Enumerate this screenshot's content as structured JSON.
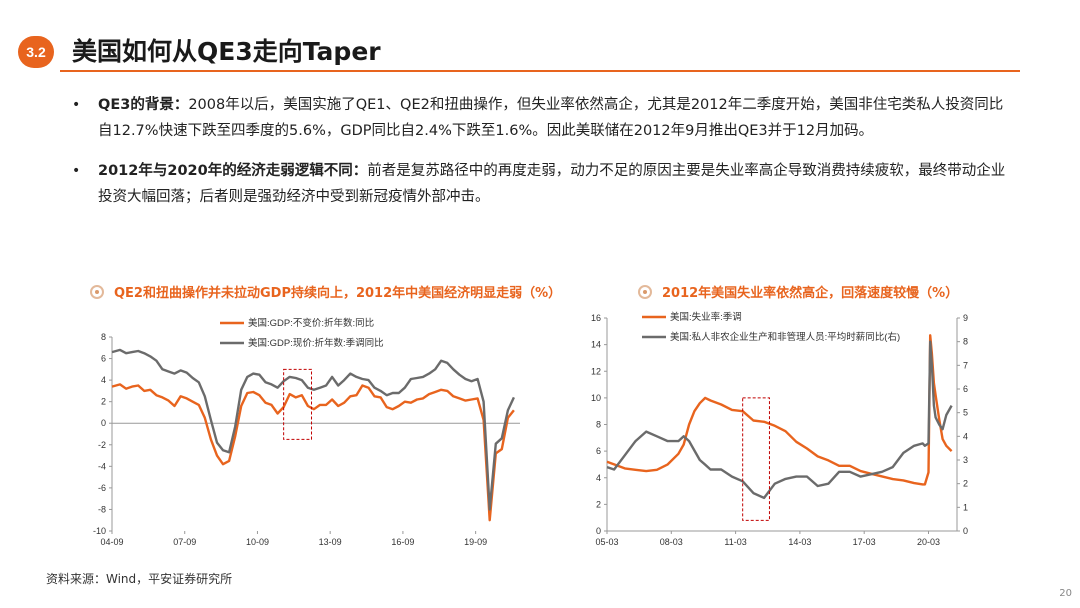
{
  "section_number": "3.2",
  "page_title": "美国如何从QE3走向Taper",
  "bullets": [
    {
      "bold": "QE3的背景：",
      "text": "2008年以后，美国实施了QE1、QE2和扭曲操作，但失业率依然高企，尤其是2012年二季度开始，美国非住宅类私人投资同比自12.7%快速下跌至四季度的5.6%，GDP同比自2.4%下跌至1.6%。因此美联储在2012年9月推出QE3并于12月加码。"
    },
    {
      "bold": "2012年与2020年的经济走弱逻辑不同：",
      "text": "前者是复苏路径中的再度走弱，动力不足的原因主要是失业率高企导致消费持续疲软，最终带动企业投资大幅回落；后者则是强劲经济中受到新冠疫情外部冲击。"
    }
  ],
  "source": "资料来源：Wind，平安证券研究所",
  "page_number": "20",
  "colors": {
    "accent": "#e8641e",
    "gray_series": "#6b6b6b",
    "highlight_box": "#c00000"
  },
  "chart_data": [
    {
      "type": "line",
      "title": "QE2和扭曲操作并未拉动GDP持续向上，2012年中美国经济明显走弱（%）",
      "xlabel": "",
      "ylabel": "",
      "ylim": [
        -10,
        8
      ],
      "y_ticks": [
        8,
        6,
        4,
        2,
        0,
        -2,
        -4,
        -6,
        -8,
        -10
      ],
      "x_tick_labels": [
        "04-09",
        "07-09",
        "10-09",
        "13-09",
        "16-09",
        "19-09"
      ],
      "x_tick_values": [
        2004.67,
        2007.67,
        2010.67,
        2013.67,
        2016.67,
        2019.67
      ],
      "xlim": [
        2004.67,
        2021.5
      ],
      "highlight_x": [
        2011.75,
        2012.9
      ],
      "highlight_y": [
        -1.5,
        5.0
      ],
      "legend_position": "top-right",
      "series": [
        {
          "name": "美国:GDP:不变价:折年数:同比",
          "color": "#e8641e",
          "x": [
            2004.67,
            2005.0,
            2005.25,
            2005.5,
            2005.75,
            2006.0,
            2006.25,
            2006.5,
            2006.75,
            2007.0,
            2007.25,
            2007.5,
            2007.75,
            2008.0,
            2008.25,
            2008.5,
            2008.75,
            2009.0,
            2009.25,
            2009.5,
            2009.75,
            2010.0,
            2010.25,
            2010.5,
            2010.75,
            2011.0,
            2011.25,
            2011.5,
            2011.75,
            2012.0,
            2012.25,
            2012.5,
            2012.75,
            2013.0,
            2013.25,
            2013.5,
            2013.75,
            2014.0,
            2014.25,
            2014.5,
            2014.75,
            2015.0,
            2015.25,
            2015.5,
            2015.75,
            2016.0,
            2016.25,
            2016.5,
            2016.75,
            2017.0,
            2017.25,
            2017.5,
            2017.75,
            2018.0,
            2018.25,
            2018.5,
            2018.75,
            2019.0,
            2019.25,
            2019.5,
            2019.75,
            2020.0,
            2020.25,
            2020.5,
            2020.75,
            2021.0,
            2021.25
          ],
          "values": [
            3.4,
            3.6,
            3.2,
            3.4,
            3.5,
            3.0,
            3.1,
            2.6,
            2.4,
            2.1,
            1.6,
            2.5,
            2.3,
            2.0,
            1.7,
            0.5,
            -1.5,
            -3.0,
            -3.8,
            -3.5,
            -1.2,
            1.6,
            2.8,
            2.9,
            2.6,
            1.9,
            1.7,
            0.9,
            1.5,
            2.7,
            2.4,
            2.6,
            1.6,
            1.3,
            1.7,
            1.7,
            2.2,
            1.6,
            1.9,
            2.5,
            2.6,
            3.5,
            3.3,
            2.5,
            2.4,
            1.5,
            1.3,
            1.6,
            2.0,
            1.9,
            2.2,
            2.3,
            2.7,
            2.9,
            3.1,
            3.0,
            2.5,
            2.3,
            2.1,
            2.2,
            2.3,
            0.3,
            -9.0,
            -2.8,
            -2.4,
            0.5,
            1.2
          ]
        },
        {
          "name": "美国:GDP:现价:折年数:季调同比",
          "color": "#6b6b6b",
          "x": [
            2004.67,
            2005.0,
            2005.25,
            2005.5,
            2005.75,
            2006.0,
            2006.25,
            2006.5,
            2006.75,
            2007.0,
            2007.25,
            2007.5,
            2007.75,
            2008.0,
            2008.25,
            2008.5,
            2008.75,
            2009.0,
            2009.25,
            2009.5,
            2009.75,
            2010.0,
            2010.25,
            2010.5,
            2010.75,
            2011.0,
            2011.25,
            2011.5,
            2011.75,
            2012.0,
            2012.25,
            2012.5,
            2012.75,
            2013.0,
            2013.25,
            2013.5,
            2013.75,
            2014.0,
            2014.25,
            2014.5,
            2014.75,
            2015.0,
            2015.25,
            2015.5,
            2015.75,
            2016.0,
            2016.25,
            2016.5,
            2016.75,
            2017.0,
            2017.25,
            2017.5,
            2017.75,
            2018.0,
            2018.25,
            2018.5,
            2018.75,
            2019.0,
            2019.25,
            2019.5,
            2019.75,
            2020.0,
            2020.25,
            2020.5,
            2020.75,
            2021.0,
            2021.25
          ],
          "values": [
            6.6,
            6.8,
            6.5,
            6.6,
            6.7,
            6.5,
            6.2,
            5.8,
            5.0,
            4.8,
            4.6,
            4.9,
            4.7,
            4.2,
            3.8,
            2.5,
            0.3,
            -1.8,
            -2.5,
            -2.7,
            -0.3,
            3.1,
            4.3,
            4.6,
            4.5,
            3.8,
            3.6,
            3.3,
            3.9,
            4.3,
            4.2,
            4.0,
            3.3,
            3.1,
            3.3,
            3.5,
            4.3,
            3.5,
            4.0,
            4.6,
            4.3,
            4.1,
            4.0,
            3.3,
            3.0,
            2.6,
            2.8,
            2.8,
            3.3,
            4.1,
            4.2,
            4.3,
            4.6,
            5.0,
            5.8,
            5.6,
            5.0,
            4.5,
            4.1,
            3.9,
            4.1,
            2.0,
            -8.0,
            -1.9,
            -1.4,
            1.2,
            2.4
          ]
        }
      ]
    },
    {
      "type": "line",
      "title": "2012年美国失业率依然高企，回落速度较慢（%）",
      "xlabel": "",
      "ylabel": "",
      "ylim": [
        0,
        16
      ],
      "y_ticks": [
        16,
        14,
        12,
        10,
        8,
        6,
        4,
        2,
        0
      ],
      "y2lim": [
        0,
        9
      ],
      "y2_ticks": [
        9,
        8,
        7,
        6,
        5,
        4,
        3,
        2,
        1,
        0
      ],
      "x_tick_labels": [
        "05-03",
        "08-03",
        "11-03",
        "14-03",
        "17-03",
        "20-03"
      ],
      "x_tick_values": [
        2005.17,
        2008.17,
        2011.17,
        2014.17,
        2017.17,
        2020.17
      ],
      "xlim": [
        2005.17,
        2021.5
      ],
      "highlight_x": [
        2011.5,
        2012.75
      ],
      "highlight_y": [
        0.8,
        10.0
      ],
      "legend_position": "top-left",
      "series": [
        {
          "name": "美国:失业率:季调",
          "color": "#e8641e",
          "axis": "left",
          "x": [
            2005.17,
            2005.5,
            2006.0,
            2006.5,
            2007.0,
            2007.5,
            2008.0,
            2008.5,
            2008.75,
            2009.0,
            2009.25,
            2009.5,
            2009.75,
            2010.0,
            2010.5,
            2011.0,
            2011.5,
            2012.0,
            2012.5,
            2013.0,
            2013.5,
            2014.0,
            2014.5,
            2015.0,
            2015.5,
            2016.0,
            2016.5,
            2017.0,
            2017.5,
            2018.0,
            2018.5,
            2019.0,
            2019.5,
            2019.9,
            2020.0,
            2020.17,
            2020.25,
            2020.33,
            2020.42,
            2020.5,
            2020.67,
            2020.83,
            2021.0,
            2021.25
          ],
          "values": [
            5.2,
            5.0,
            4.7,
            4.6,
            4.5,
            4.6,
            5.0,
            5.8,
            6.5,
            8.0,
            9.0,
            9.6,
            10.0,
            9.8,
            9.5,
            9.1,
            9.0,
            8.3,
            8.2,
            7.9,
            7.5,
            6.7,
            6.2,
            5.6,
            5.3,
            4.9,
            4.9,
            4.5,
            4.3,
            4.1,
            3.9,
            3.8,
            3.6,
            3.5,
            3.5,
            4.4,
            14.7,
            13.3,
            11.1,
            10.2,
            8.4,
            6.9,
            6.4,
            6.0
          ]
        },
        {
          "name": "美国:私人非农企业生产和非管理人员:平均时薪同比(右)",
          "color": "#6b6b6b",
          "axis": "right",
          "x": [
            2005.17,
            2005.5,
            2006.0,
            2006.5,
            2007.0,
            2007.5,
            2008.0,
            2008.5,
            2008.75,
            2009.0,
            2009.25,
            2009.5,
            2009.75,
            2010.0,
            2010.5,
            2011.0,
            2011.5,
            2012.0,
            2012.5,
            2013.0,
            2013.5,
            2014.0,
            2014.5,
            2015.0,
            2015.5,
            2016.0,
            2016.5,
            2017.0,
            2017.5,
            2018.0,
            2018.5,
            2019.0,
            2019.5,
            2019.9,
            2020.0,
            2020.17,
            2020.25,
            2020.33,
            2020.42,
            2020.5,
            2020.67,
            2020.83,
            2021.0,
            2021.25
          ],
          "values": [
            2.7,
            2.6,
            3.2,
            3.8,
            4.2,
            4.0,
            3.8,
            3.8,
            4.0,
            3.8,
            3.4,
            3.0,
            2.8,
            2.6,
            2.6,
            2.3,
            2.1,
            1.6,
            1.4,
            2.0,
            2.2,
            2.3,
            2.3,
            1.9,
            2.0,
            2.5,
            2.5,
            2.3,
            2.4,
            2.5,
            2.7,
            3.3,
            3.6,
            3.7,
            3.6,
            3.7,
            8.0,
            7.0,
            5.3,
            4.8,
            4.5,
            4.3,
            4.9,
            5.3
          ]
        }
      ]
    }
  ]
}
